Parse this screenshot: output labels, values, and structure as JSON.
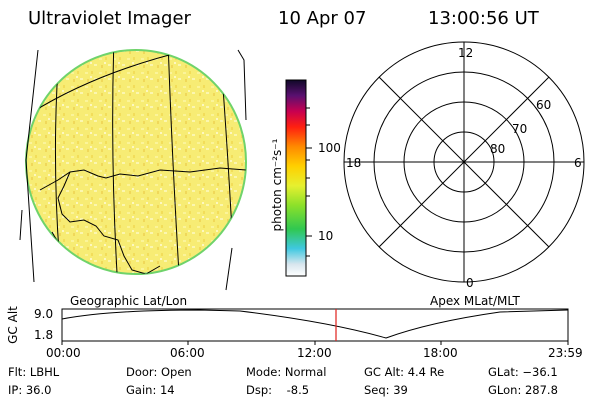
{
  "header": {
    "instrument": "Ultraviolet Imager",
    "date": "10 Apr 07",
    "time": "13:00:56 UT"
  },
  "colorbar": {
    "label": "photon cm⁻²s⁻¹",
    "tick_100": "100",
    "tick_10": "10"
  },
  "polar_plot": {
    "mlt_top": "12",
    "mlt_left": "18",
    "mlt_right": "6",
    "mlt_bottom": "0",
    "lat_60": "60",
    "lat_70": "70",
    "lat_80": "80"
  },
  "timeline": {
    "left_title": "Geographic Lat/Lon",
    "right_title": "Apex MLat/MLT",
    "ylabel": "GC Alt",
    "ytick_top": "9.0",
    "ytick_bottom": "1.8",
    "xticks": [
      "00:00",
      "06:00",
      "12:00",
      "18:00",
      "23:59"
    ],
    "current_time_fraction": 0.5417
  },
  "status": {
    "flt": "Flt: LBHL",
    "ip": "IP: 36.0",
    "door": "Door: Open",
    "gain": "Gain: 14",
    "mode": "Mode: Normal",
    "dsp": "Dsp:    -8.5",
    "gcalt": "GC Alt: 4.4 Re",
    "seq": "Seq: 39",
    "glat": "GLat: −36.1",
    "glon": "GLon: 287.8"
  },
  "colors": {
    "disk_fill": "#f6ea6a",
    "disk_edge": "#6fd36b",
    "time_marker": "#e0201c"
  }
}
